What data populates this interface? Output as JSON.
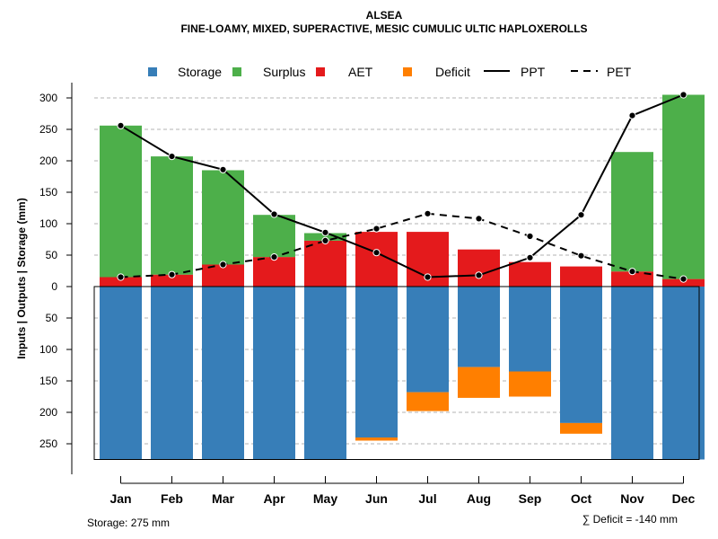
{
  "chart_data": {
    "type": "bar",
    "title": "ALSEA",
    "subtitle": "FINE-LOAMY, MIXED, SUPERACTIVE, MESIC CUMULIC ULTIC HAPLOXEROLLS",
    "ylabel": "Inputs | Outputs | Storage    (mm)",
    "xlabel": "",
    "ylim": [
      -275,
      310
    ],
    "y_ticks": [
      300,
      250,
      200,
      150,
      100,
      50,
      0,
      -50,
      -100,
      -150,
      -200,
      -250
    ],
    "y_tick_labels": [
      "300",
      "250",
      "200",
      "150",
      "100",
      "50",
      "0",
      "50",
      "100",
      "150",
      "200",
      "250"
    ],
    "categories": [
      "Jan",
      "Feb",
      "Mar",
      "Apr",
      "May",
      "Jun",
      "Jul",
      "Aug",
      "Sep",
      "Oct",
      "Nov",
      "Dec"
    ],
    "series": [
      {
        "name": "Storage",
        "color": "#377eb8",
        "values": [
          275,
          275,
          275,
          275,
          275,
          240,
          168,
          128,
          135,
          217,
          275,
          275
        ]
      },
      {
        "name": "Surplus",
        "color": "#4daf4a",
        "values": [
          241,
          188,
          150,
          67,
          12,
          0,
          0,
          0,
          0,
          0,
          190,
          293
        ]
      },
      {
        "name": "AET",
        "color": "#e41a1c",
        "values": [
          15,
          19,
          35,
          47,
          73,
          87,
          87,
          59,
          39,
          32,
          24,
          12
        ]
      },
      {
        "name": "Deficit",
        "color": "#ff7f00",
        "values": [
          0,
          0,
          0,
          0,
          0,
          5,
          30,
          49,
          40,
          17,
          0,
          0
        ]
      },
      {
        "name": "PPT",
        "color": "#000000",
        "style": "solid",
        "values": [
          256,
          207,
          186,
          115,
          86,
          54,
          15,
          18,
          46,
          114,
          272,
          305
        ]
      },
      {
        "name": "PET",
        "color": "#000000",
        "style": "dashed",
        "values": [
          15,
          19,
          35,
          47,
          73,
          92,
          116,
          108,
          80,
          49,
          24,
          12
        ]
      }
    ],
    "legend": {
      "placement": "top",
      "items": [
        {
          "label": "Storage",
          "kind": "square",
          "color": "#377eb8"
        },
        {
          "label": "Surplus",
          "kind": "square",
          "color": "#4daf4a"
        },
        {
          "label": "AET",
          "kind": "square",
          "color": "#e41a1c"
        },
        {
          "label": "Deficit",
          "kind": "square",
          "color": "#ff7f00"
        },
        {
          "label": "PPT",
          "kind": "line",
          "color": "#000000",
          "style": "solid"
        },
        {
          "label": "PET",
          "kind": "line",
          "color": "#000000",
          "style": "dashed"
        }
      ]
    },
    "footnotes": {
      "storage": "Storage: 275 mm",
      "deficit": "∑ Deficit = -140 mm"
    },
    "grid": true
  }
}
